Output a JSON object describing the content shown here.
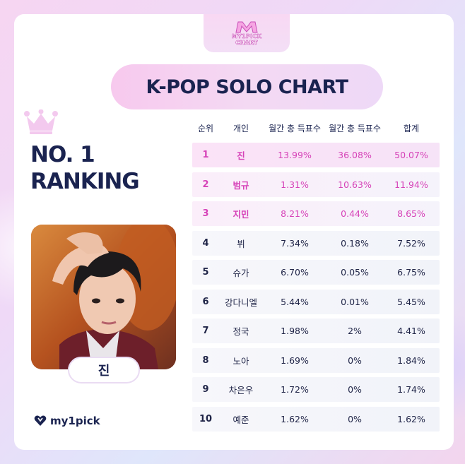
{
  "logo": {
    "line1": "MY1PICK",
    "line2": "CHART"
  },
  "title": "K-POP SOLO CHART",
  "ranking": {
    "line1": "NO. 1",
    "line2": "RANKING"
  },
  "winner_name": "진",
  "brand": "my1pick",
  "colors": {
    "accent_pink": "#d642b8",
    "navy": "#1a2350"
  },
  "table": {
    "headers": [
      "순위",
      "개인",
      "월간 총 득표수",
      "월간 총 득표수",
      "합계"
    ],
    "rows": [
      {
        "rank": "1",
        "name": "진",
        "a": "13.99%",
        "b": "36.08%",
        "total": "50.07%"
      },
      {
        "rank": "2",
        "name": "범규",
        "a": "1.31%",
        "b": "10.63%",
        "total": "11.94%"
      },
      {
        "rank": "3",
        "name": "지민",
        "a": "8.21%",
        "b": "0.44%",
        "total": "8.65%"
      },
      {
        "rank": "4",
        "name": "뷔",
        "a": "7.34%",
        "b": "0.18%",
        "total": "7.52%"
      },
      {
        "rank": "5",
        "name": "슈가",
        "a": "6.70%",
        "b": "0.05%",
        "total": "6.75%"
      },
      {
        "rank": "6",
        "name": "강다니엘",
        "a": "5.44%",
        "b": "0.01%",
        "total": "5.45%"
      },
      {
        "rank": "7",
        "name": "정국",
        "a": "1.98%",
        "b": "2%",
        "total": "4.41%"
      },
      {
        "rank": "8",
        "name": "노아",
        "a": "1.69%",
        "b": "0%",
        "total": "1.84%"
      },
      {
        "rank": "9",
        "name": "차은우",
        "a": "1.72%",
        "b": "0%",
        "total": "1.74%"
      },
      {
        "rank": "10",
        "name": "예준",
        "a": "1.62%",
        "b": "0%",
        "total": "1.62%"
      }
    ]
  }
}
